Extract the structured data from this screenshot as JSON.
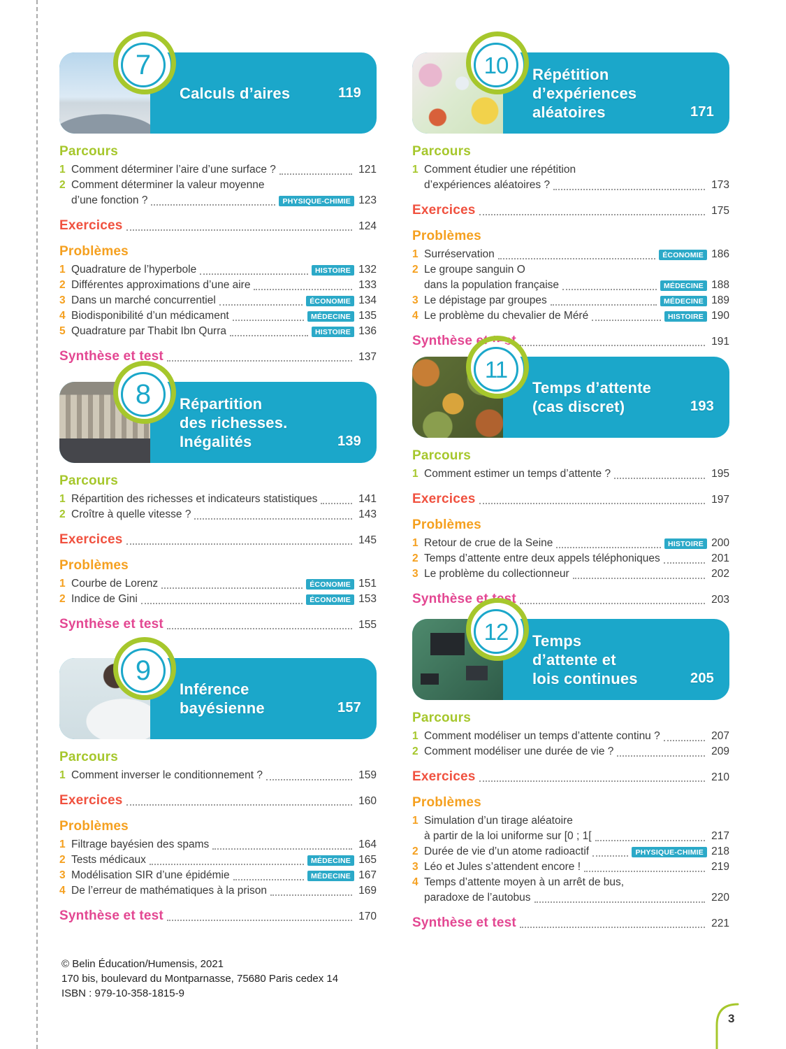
{
  "colors": {
    "teal": "#1ba7ca",
    "lime": "#a6c72c",
    "red": "#f0513f",
    "orange": "#f5a01f",
    "pink": "#e34792",
    "tagteal": "#2ba9c8",
    "text": "#3b3b3b"
  },
  "page": {
    "number": "3",
    "footer": [
      "© Belin Éducation/Humensis, 2021",
      "170 bis, boulevard du Montparnasse, 75680 Paris cedex 14",
      "ISBN : 979-10-358-1815-9"
    ]
  },
  "chapters": [
    {
      "number": "7",
      "column": "left",
      "photo": "exhibition-hall-building",
      "title_lines": [
        "Calculs d’aires"
      ],
      "page": "119",
      "sections": [
        {
          "kind": "items",
          "label": "Parcours",
          "color_key": "parcours",
          "items": [
            {
              "num": "1",
              "lines": [
                "Comment déterminer l’aire d’une surface ?"
              ],
              "page": "121"
            },
            {
              "num": "2",
              "lines": [
                "Comment déterminer la valeur moyenne",
                "d’une fonction ?"
              ],
              "tag": "PHYSIQUE-CHIMIE",
              "page": "123"
            }
          ]
        },
        {
          "kind": "leader",
          "label": "Exercices",
          "color_key": "exercices",
          "page": "124"
        },
        {
          "kind": "items",
          "label": "Problèmes",
          "color_key": "problemes",
          "items": [
            {
              "num": "1",
              "lines": [
                "Quadrature de l’hyperbole"
              ],
              "tag": "HISTOIRE",
              "page": "132"
            },
            {
              "num": "2",
              "lines": [
                "Différentes approximations d’une aire"
              ],
              "page": "133"
            },
            {
              "num": "3",
              "lines": [
                "Dans un marché concurrentiel"
              ],
              "tag": "ÉCONOMIE",
              "page": "134"
            },
            {
              "num": "4",
              "lines": [
                "Biodisponibilité d’un médicament"
              ],
              "tag": "MÉDECINE",
              "page": "135"
            },
            {
              "num": "5",
              "lines": [
                "Quadrature par Thabit Ibn Qurra"
              ],
              "tag": "HISTOIRE",
              "page": "136"
            }
          ]
        },
        {
          "kind": "leader",
          "label": "Synthèse et test",
          "color_key": "synthese",
          "page": "137"
        }
      ]
    },
    {
      "number": "8",
      "column": "left",
      "photo": "classical-building-crowd",
      "title_lines": [
        "Répartition",
        "des richesses.",
        "Inégalités"
      ],
      "page": "139",
      "sections": [
        {
          "kind": "items",
          "label": "Parcours",
          "color_key": "parcours",
          "items": [
            {
              "num": "1",
              "lines": [
                "Répartition des richesses et indicateurs statistiques"
              ],
              "page": "141"
            },
            {
              "num": "2",
              "lines": [
                "Croître à quelle vitesse ?"
              ],
              "page": "143"
            }
          ]
        },
        {
          "kind": "leader",
          "label": "Exercices",
          "color_key": "exercices",
          "page": "145"
        },
        {
          "kind": "items",
          "label": "Problèmes",
          "color_key": "problemes",
          "items": [
            {
              "num": "1",
              "lines": [
                "Courbe de Lorenz"
              ],
              "tag": "ÉCONOMIE",
              "page": "151"
            },
            {
              "num": "2",
              "lines": [
                "Indice de Gini"
              ],
              "tag": "ÉCONOMIE",
              "page": "153"
            }
          ]
        },
        {
          "kind": "leader",
          "label": "Synthèse et test",
          "color_key": "synthese",
          "page": "155"
        }
      ]
    },
    {
      "number": "9",
      "column": "left",
      "photo": "scientist-microscope",
      "title_lines": [
        "Inférence",
        "bayésienne"
      ],
      "page": "157",
      "sections": [
        {
          "kind": "items",
          "label": "Parcours",
          "color_key": "parcours",
          "items": [
            {
              "num": "1",
              "lines": [
                "Comment inverser le conditionnement ?"
              ],
              "page": "159"
            }
          ]
        },
        {
          "kind": "leader",
          "label": "Exercices",
          "color_key": "exercices",
          "page": "160"
        },
        {
          "kind": "items",
          "label": "Problèmes",
          "color_key": "problemes",
          "items": [
            {
              "num": "1",
              "lines": [
                "Filtrage bayésien des spams"
              ],
              "page": "164"
            },
            {
              "num": "2",
              "lines": [
                "Tests médicaux"
              ],
              "tag": "MÉDECINE",
              "page": "165"
            },
            {
              "num": "3",
              "lines": [
                "Modélisation SIR d’une épidémie"
              ],
              "tag": "MÉDECINE",
              "page": "167"
            },
            {
              "num": "4",
              "lines": [
                "De l’erreur de mathématiques à la prison"
              ],
              "page": "169"
            }
          ]
        },
        {
          "kind": "leader",
          "label": "Synthèse et test",
          "color_key": "synthese",
          "page": "170"
        }
      ]
    },
    {
      "number": "10",
      "column": "right",
      "photo": "butterflies-flower-meadow",
      "title_lines": [
        "Répétition",
        "d’expériences",
        "aléatoires"
      ],
      "page": "171",
      "sections": [
        {
          "kind": "items",
          "label": "Parcours",
          "color_key": "parcours",
          "items": [
            {
              "num": "1",
              "lines": [
                "Comment étudier une répétition",
                "d’expériences aléatoires ?"
              ],
              "page": "173"
            }
          ]
        },
        {
          "kind": "leader",
          "label": "Exercices",
          "color_key": "exercices",
          "page": "175"
        },
        {
          "kind": "items",
          "label": "Problèmes",
          "color_key": "problemes",
          "items": [
            {
              "num": "1",
              "lines": [
                "Surréservation"
              ],
              "tag": "ÉCONOMIE",
              "page": "186"
            },
            {
              "num": "2",
              "lines": [
                "Le groupe sanguin O",
                "dans la population française"
              ],
              "tag": "MÉDECINE",
              "page": "188"
            },
            {
              "num": "3",
              "lines": [
                "Le dépistage par groupes"
              ],
              "tag": "MÉDECINE",
              "page": "189"
            },
            {
              "num": "4",
              "lines": [
                "Le problème du chevalier de Méré"
              ],
              "tag": "HISTOIRE",
              "page": "190"
            }
          ]
        },
        {
          "kind": "leader",
          "label": "Synthèse et test",
          "color_key": "synthese",
          "page": "191"
        }
      ]
    },
    {
      "number": "11",
      "column": "right",
      "photo": "autumn-forest-aerial",
      "title_lines": [
        "Temps d’attente",
        "(cas discret)"
      ],
      "page": "193",
      "sections": [
        {
          "kind": "items",
          "label": "Parcours",
          "color_key": "parcours",
          "items": [
            {
              "num": "1",
              "lines": [
                "Comment estimer un temps d’attente ?"
              ],
              "page": "195"
            }
          ]
        },
        {
          "kind": "leader",
          "label": "Exercices",
          "color_key": "exercices",
          "page": "197"
        },
        {
          "kind": "items",
          "label": "Problèmes",
          "color_key": "problemes",
          "items": [
            {
              "num": "1",
              "lines": [
                "Retour de crue de la Seine"
              ],
              "tag": "HISTOIRE",
              "page": "200"
            },
            {
              "num": "2",
              "lines": [
                "Temps d’attente entre deux appels téléphoniques"
              ],
              "page": "201"
            },
            {
              "num": "3",
              "lines": [
                "Le problème du collectionneur"
              ],
              "page": "202"
            }
          ]
        },
        {
          "kind": "leader",
          "label": "Synthèse et test",
          "color_key": "synthese",
          "page": "203"
        }
      ]
    },
    {
      "number": "12",
      "column": "right",
      "photo": "circuit-board",
      "title_lines": [
        "Temps",
        "d’attente et",
        "lois continues"
      ],
      "page": "205",
      "sections": [
        {
          "kind": "items",
          "label": "Parcours",
          "color_key": "parcours",
          "items": [
            {
              "num": "1",
              "lines": [
                "Comment modéliser un temps d’attente continu ?"
              ],
              "page": "207"
            },
            {
              "num": "2",
              "lines": [
                "Comment modéliser une durée de vie ?"
              ],
              "page": "209"
            }
          ]
        },
        {
          "kind": "leader",
          "label": "Exercices",
          "color_key": "exercices",
          "page": "210"
        },
        {
          "kind": "items",
          "label": "Problèmes",
          "color_key": "problemes",
          "items": [
            {
              "num": "1",
              "lines": [
                "Simulation d’un tirage aléatoire",
                "à partir de la loi uniforme sur [0 ; 1["
              ],
              "page": "217"
            },
            {
              "num": "2",
              "lines": [
                "Durée de vie d’un atome radioactif"
              ],
              "tag": "PHYSIQUE-CHIMIE",
              "page": "218"
            },
            {
              "num": "3",
              "lines": [
                "Léo et Jules s’attendent encore !"
              ],
              "page": "219"
            },
            {
              "num": "4",
              "lines": [
                "Temps d’attente moyen à un arrêt de bus,",
                "paradoxe de l’autobus"
              ],
              "page": "220"
            }
          ]
        },
        {
          "kind": "leader",
          "label": "Synthèse et test",
          "color_key": "synthese",
          "page": "221"
        }
      ]
    }
  ]
}
